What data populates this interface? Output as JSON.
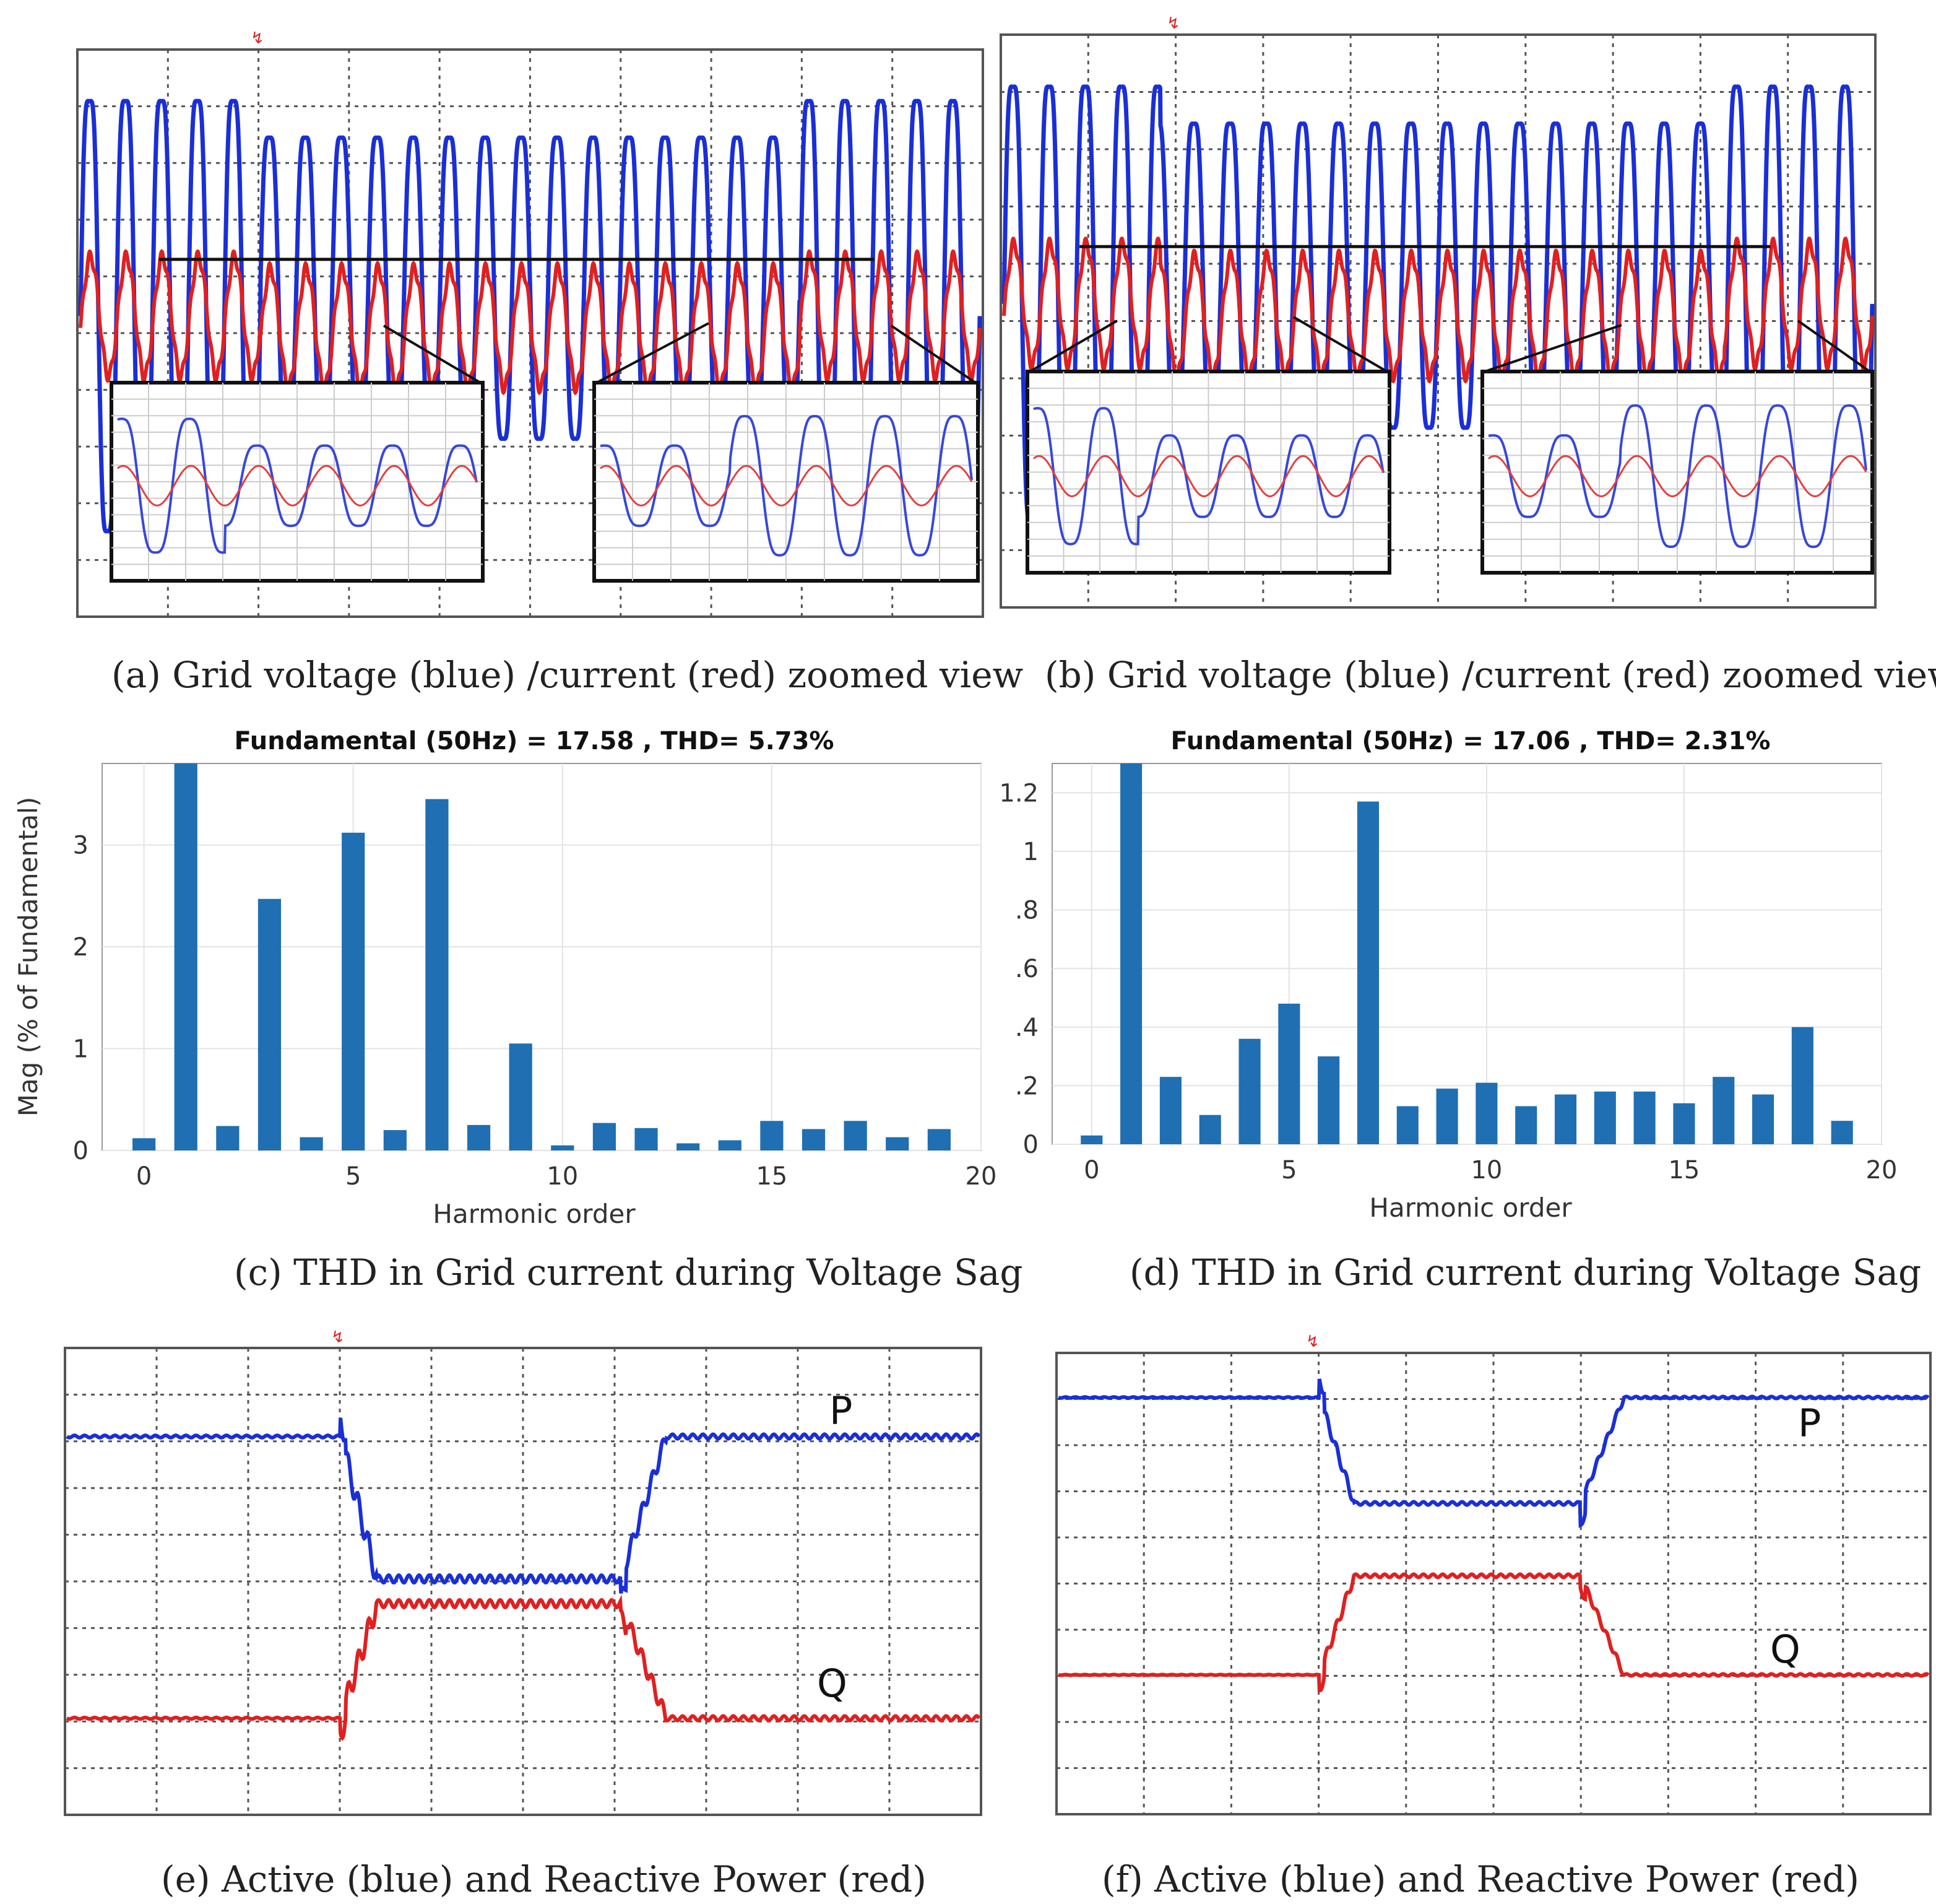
{
  "colors": {
    "voltage": "#1a2fd6",
    "current": "#e02020",
    "bar": "#1f6fb2",
    "grid": "#555555"
  },
  "chart_data": [
    {
      "id": "a",
      "type": "line",
      "caption": "(a) Grid voltage (blue) /current (red) zoomed view",
      "series": [
        {
          "name": "Grid voltage",
          "color": "blue",
          "amplitude_normal": 1.0,
          "amplitude_sag": 0.7
        },
        {
          "name": "Grid current",
          "color": "red",
          "amplitude": 0.25
        }
      ],
      "sag_interval_fraction": [
        0.2,
        0.8
      ],
      "cycles": 25,
      "grid": true,
      "insets": 2
    },
    {
      "id": "b",
      "type": "line",
      "caption": "(b) Grid voltage (blue) /current (red) zoomed view",
      "series": [
        {
          "name": "Grid voltage",
          "color": "blue",
          "amplitude_normal": 1.0,
          "amplitude_sag": 0.7
        },
        {
          "name": "Grid current",
          "color": "red",
          "amplitude": 0.25
        }
      ],
      "sag_interval_fraction": [
        0.18,
        0.83
      ],
      "cycles": 24,
      "grid": true,
      "insets": 2
    },
    {
      "id": "c",
      "type": "bar",
      "title": "Fundamental (50Hz) = 17.58 , THD= 5.73%",
      "caption": "(c) THD in Grid current during Voltage Sag",
      "xlabel": "Harmonic order",
      "ylabel": "Mag (% of Fundamental)",
      "x": [
        0,
        1,
        2,
        3,
        4,
        5,
        6,
        7,
        8,
        9,
        10,
        11,
        12,
        13,
        14,
        15,
        16,
        17,
        18,
        19
      ],
      "values": [
        0.12,
        3.8,
        0.24,
        2.47,
        0.13,
        3.12,
        0.2,
        3.45,
        0.25,
        1.05,
        0.05,
        0.27,
        0.22,
        0.07,
        0.1,
        0.29,
        0.21,
        0.29,
        0.13,
        0.21
      ],
      "xlim": [
        -1,
        20
      ],
      "ylim": [
        0,
        3.8
      ],
      "xticks": [
        "0",
        "5",
        "10",
        "15",
        "20"
      ],
      "yticks": [
        "0",
        "1",
        "2",
        "3"
      ]
    },
    {
      "id": "d",
      "type": "bar",
      "title": "Fundamental (50Hz) = 17.06 , THD= 2.31%",
      "caption": "(d) THD in Grid current during Voltage Sag",
      "xlabel": "Harmonic order",
      "ylabel": "",
      "x": [
        0,
        1,
        2,
        3,
        4,
        5,
        6,
        7,
        8,
        9,
        10,
        11,
        12,
        13,
        14,
        15,
        16,
        17,
        18,
        19
      ],
      "values": [
        0.03,
        1.3,
        0.23,
        0.1,
        0.36,
        0.48,
        0.3,
        1.17,
        0.13,
        0.19,
        0.21,
        0.13,
        0.17,
        0.18,
        0.18,
        0.14,
        0.23,
        0.17,
        0.4,
        0.08
      ],
      "xlim": [
        -1,
        20
      ],
      "ylim": [
        0,
        1.3
      ],
      "xticks": [
        "0",
        "5",
        "10",
        "15",
        "20"
      ],
      "yticks": [
        "0",
        ".2",
        ".4",
        ".6",
        ".8",
        "1",
        "1.2"
      ]
    },
    {
      "id": "e",
      "type": "line",
      "caption": "(e) Active (blue) and Reactive Power (red)",
      "series": [
        {
          "name": "P",
          "label": "P",
          "color": "blue",
          "normal": 1.0,
          "sag": 0.5
        },
        {
          "name": "Q",
          "label": "Q",
          "color": "red",
          "normal": 0.0,
          "sag": 0.4
        }
      ],
      "sag_interval_fraction": [
        0.3,
        0.607
      ],
      "grid": true
    },
    {
      "id": "f",
      "type": "line",
      "caption": "(f) Active (blue) and Reactive Power (red)",
      "series": [
        {
          "name": "P",
          "label": "P",
          "color": "blue",
          "normal": 1.0,
          "sag": 0.55
        },
        {
          "name": "Q",
          "label": "Q",
          "color": "red",
          "normal": 0.0,
          "sag": 0.45
        }
      ],
      "sag_interval_fraction": [
        0.3,
        0.6
      ],
      "grid": true
    }
  ]
}
